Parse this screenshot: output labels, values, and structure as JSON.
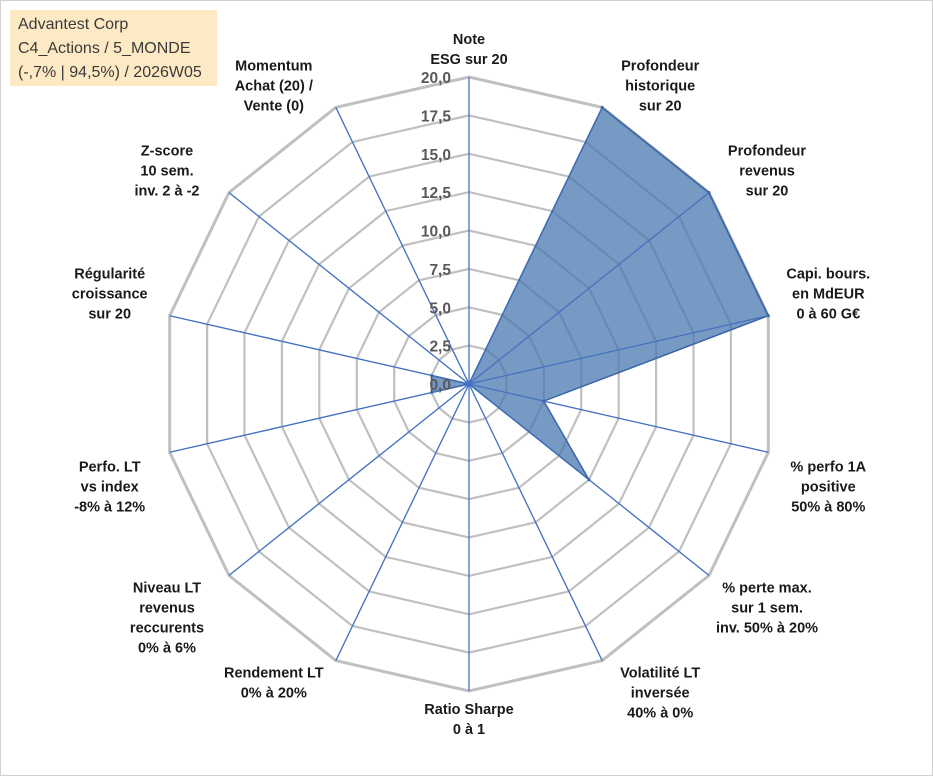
{
  "header": {
    "line1": "Advantest Corp",
    "line2": "C4_Actions / 5_MONDE",
    "line3": "(-,7% | 94,5%) / 2026W05"
  },
  "colors": {
    "fill": "#4a78b0",
    "stroke": "#3a65a5",
    "grid": "#c0c0c0",
    "spoke": "#4472c4",
    "header_bg": "#fde9c4"
  },
  "chart_data": {
    "type": "radar",
    "title": "Advantest Corp",
    "rmin": 0,
    "rmax": 20,
    "tick_step": 2.5,
    "tick_labels": [
      "0,0",
      "2,5",
      "5,0",
      "7,5",
      "10,0",
      "12,5",
      "15,0",
      "17,5",
      "20,0"
    ],
    "axes": [
      {
        "label": [
          "Note",
          "ESG sur 20"
        ],
        "value": 0
      },
      {
        "label": [
          "Profondeur",
          "historique",
          "sur 20"
        ],
        "value": 20
      },
      {
        "label": [
          "Profondeur",
          "revenus",
          "sur 20"
        ],
        "value": 20
      },
      {
        "label": [
          "Capi. bours.",
          "en MdEUR",
          "0 à 60 G€"
        ],
        "value": 20
      },
      {
        "label": [
          "% perfo 1A",
          "positive",
          "50% à 80%"
        ],
        "value": 5
      },
      {
        "label": [
          "% perte max.",
          "sur 1 sem.",
          "inv. 50% à 20%"
        ],
        "value": 10
      },
      {
        "label": [
          "Volatilité LT",
          "inversée",
          "40% à 0%"
        ],
        "value": 0
      },
      {
        "label": [
          "Ratio Sharpe",
          "0 à 1"
        ],
        "value": 0
      },
      {
        "label": [
          "Rendement LT",
          "0% à 20%"
        ],
        "value": 0
      },
      {
        "label": [
          "Niveau LT",
          "revenus",
          "reccurents",
          "0% à 6%"
        ],
        "value": 0
      },
      {
        "label": [
          "Perfo. LT",
          "vs index",
          "-8% à 12%"
        ],
        "value": 2.5
      },
      {
        "label": [
          "Régularité",
          "croissance",
          "sur 20"
        ],
        "value": 2.5
      },
      {
        "label": [
          "Z-score",
          "10 sem.",
          "inv. 2 à -2"
        ],
        "value": 0
      },
      {
        "label": [
          "Momentum",
          "Achat (20) /",
          "Vente (0)"
        ],
        "value": 0
      }
    ],
    "series": [
      {
        "name": "Advantest Corp",
        "values": [
          0,
          20,
          20,
          20,
          5,
          10,
          0,
          0,
          0,
          0,
          2.5,
          2.5,
          0,
          0
        ]
      }
    ]
  }
}
